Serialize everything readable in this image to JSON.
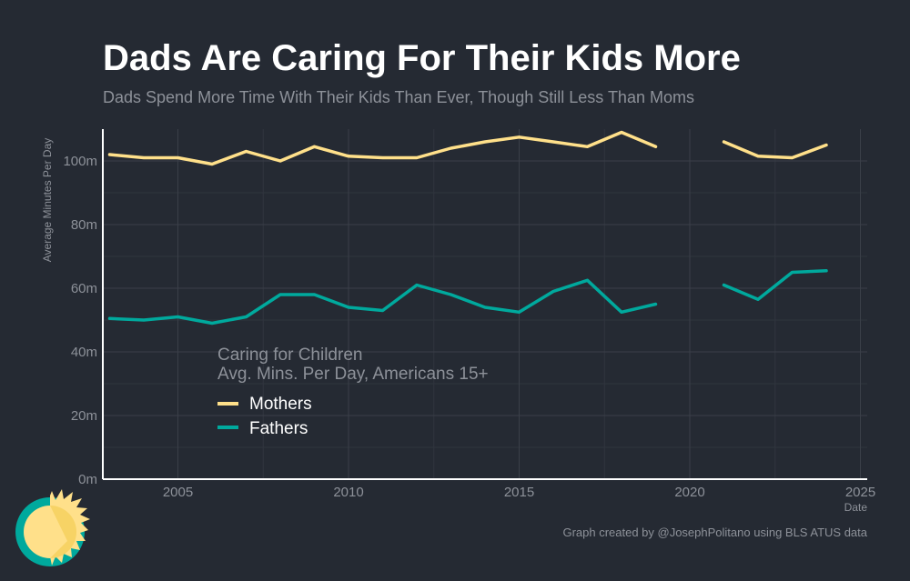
{
  "header": {
    "title": "Dads Are Caring For Their Kids More",
    "subtitle": "Dads Spend More Time With Their Kids Than Ever, Though Still Less Than Moms"
  },
  "caption": "Graph created by @JosephPolitano using BLS ATUS data",
  "legend": {
    "title_line1": "Caring for Children",
    "title_line2": "Avg. Mins. Per Day, Americans 15+"
  },
  "colors": {
    "background": "#252a33",
    "mothers": "#ffe08a",
    "fathers": "#00a99d"
  },
  "chart_data": {
    "type": "line",
    "title": "Dads Are Caring For Their Kids More",
    "subtitle": "Dads Spend More Time With Their Kids Than Ever, Though Still Less Than Moms",
    "xlabel": "Date",
    "ylabel": "Average Minutes Per Day",
    "xlim": [
      2002.8,
      2025.2
    ],
    "ylim": [
      0,
      110
    ],
    "x_ticks": [
      2005,
      2010,
      2015,
      2020,
      2025
    ],
    "y_ticks": [
      0,
      20,
      40,
      60,
      80,
      100
    ],
    "y_tick_labels": [
      "0m",
      "20m",
      "40m",
      "60m",
      "80m",
      "100m"
    ],
    "grid": true,
    "legend_position": "bottom-left, inside plot",
    "series": [
      {
        "name": "Mothers",
        "color": "#ffe08a",
        "points": [
          [
            2003,
            102
          ],
          [
            2004,
            101
          ],
          [
            2005,
            101
          ],
          [
            2006,
            99
          ],
          [
            2007,
            103
          ],
          [
            2008,
            100
          ],
          [
            2009,
            104.5
          ],
          [
            2010,
            101.5
          ],
          [
            2011,
            101
          ],
          [
            2012,
            101
          ],
          [
            2013,
            104
          ],
          [
            2014,
            106
          ],
          [
            2015,
            107.5
          ],
          [
            2016,
            106
          ],
          [
            2017,
            104.5
          ],
          [
            2018,
            109
          ],
          [
            2019,
            104.5
          ],
          [
            2020,
            null
          ],
          [
            2021,
            106
          ],
          [
            2022,
            101.5
          ],
          [
            2023,
            101
          ],
          [
            2024,
            105
          ]
        ]
      },
      {
        "name": "Fathers",
        "color": "#00a99d",
        "points": [
          [
            2003,
            50.5
          ],
          [
            2004,
            50
          ],
          [
            2005,
            51
          ],
          [
            2006,
            49
          ],
          [
            2007,
            51
          ],
          [
            2008,
            58
          ],
          [
            2009,
            58
          ],
          [
            2010,
            54
          ],
          [
            2011,
            53
          ],
          [
            2012,
            61
          ],
          [
            2013,
            58
          ],
          [
            2014,
            54
          ],
          [
            2015,
            52.5
          ],
          [
            2016,
            59
          ],
          [
            2017,
            62.5
          ],
          [
            2018,
            52.5
          ],
          [
            2019,
            55
          ],
          [
            2020,
            null
          ],
          [
            2021,
            61
          ],
          [
            2022,
            56.5
          ],
          [
            2023,
            65
          ],
          [
            2024,
            65.5
          ]
        ]
      }
    ]
  }
}
